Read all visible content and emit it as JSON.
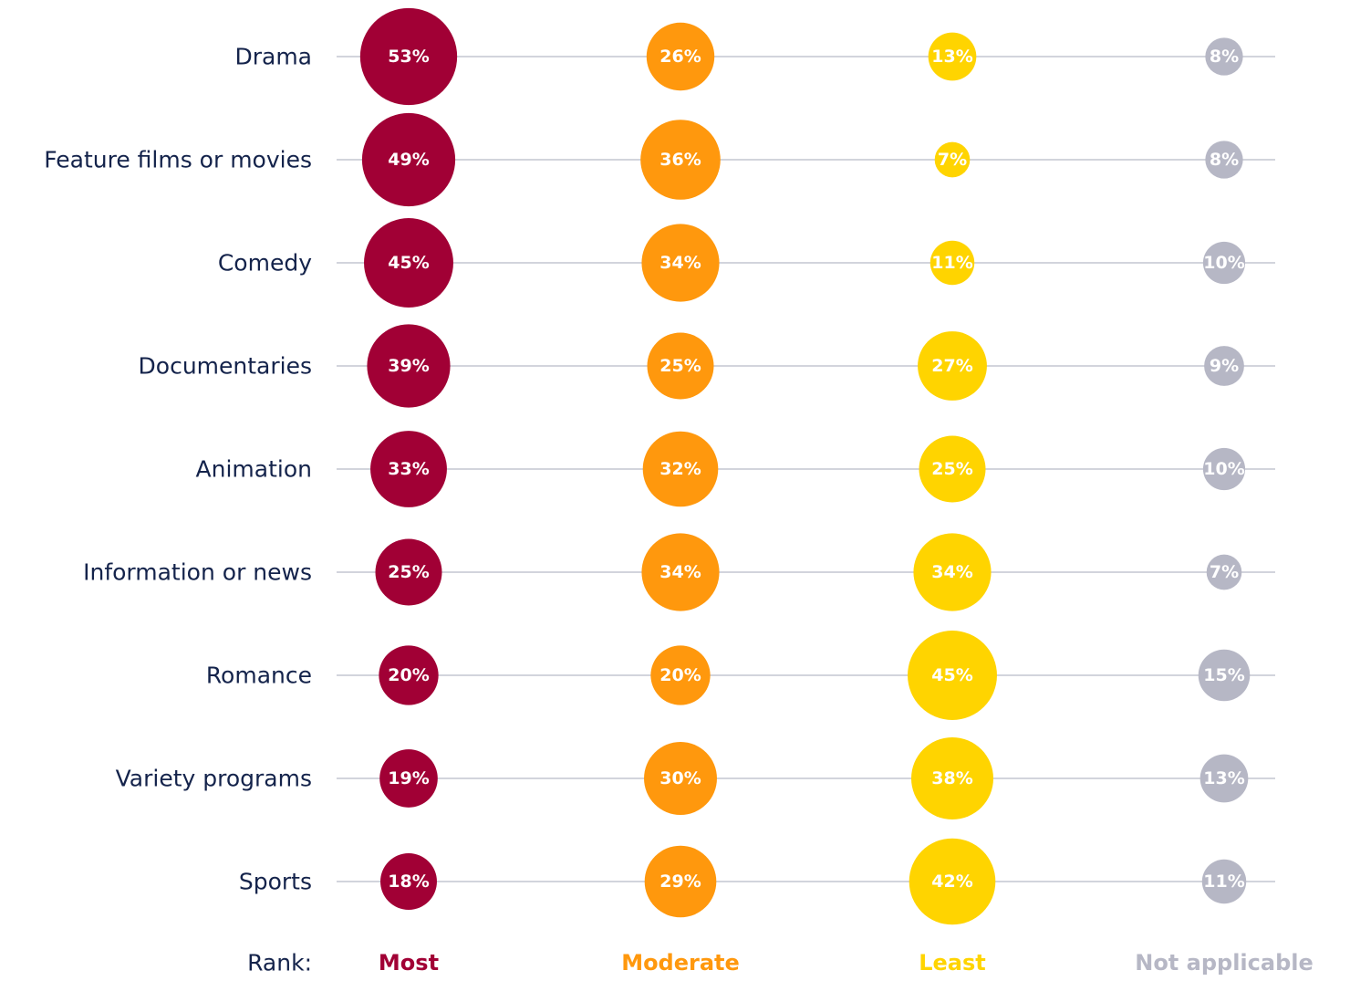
{
  "chart_data": {
    "type": "bubble",
    "categories": [
      "Drama",
      "Feature films or movies",
      "Comedy",
      "Documentaries",
      "Animation",
      "Information or news",
      "Romance",
      "Variety programs",
      "Sports"
    ],
    "legend_title": "Rank:",
    "series": [
      {
        "name": "Most",
        "color": "#a10035",
        "values": [
          53,
          49,
          45,
          39,
          33,
          25,
          20,
          19,
          18
        ],
        "value_labels": [
          "53%",
          "49%",
          "45%",
          "39%",
          "33%",
          "25%",
          "20%",
          "19%",
          "18%"
        ]
      },
      {
        "name": "Moderate",
        "color": "#ff980d",
        "values": [
          26,
          36,
          34,
          25,
          32,
          34,
          20,
          30,
          29
        ],
        "value_labels": [
          "26%",
          "36%",
          "34%",
          "25%",
          "32%",
          "34%",
          "20%",
          "30%",
          "29%"
        ]
      },
      {
        "name": "Least",
        "color": "#ffd400",
        "values": [
          13,
          7,
          11,
          27,
          25,
          34,
          45,
          38,
          42
        ],
        "value_labels": [
          "13%",
          "7%",
          "11%",
          "27%",
          "25%",
          "34%",
          "45%",
          "38%",
          "42%"
        ]
      },
      {
        "name": "Not applicable",
        "color": "#b6b7c5",
        "values": [
          8,
          8,
          10,
          9,
          10,
          7,
          15,
          13,
          11
        ],
        "value_labels": [
          "8%",
          "8%",
          "10%",
          "9%",
          "10%",
          "7%",
          "15%",
          "13%",
          "11%"
        ]
      }
    ]
  }
}
